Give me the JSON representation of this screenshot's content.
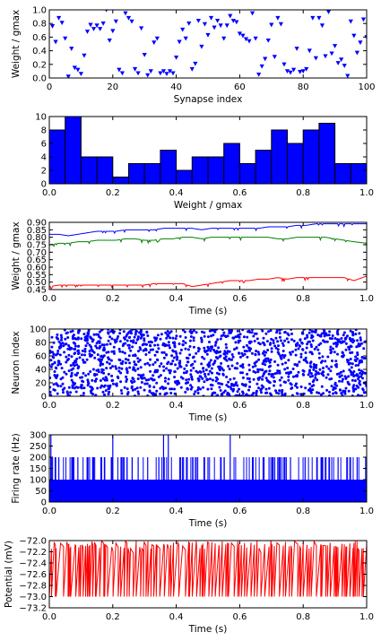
{
  "chart_data": [
    {
      "type": "scatter",
      "xlabel": "Synapse index",
      "ylabel": "Weight / gmax",
      "xlim": [
        0,
        100
      ],
      "ylim": [
        0,
        1.0
      ],
      "xticks": [
        0,
        20,
        40,
        60,
        80,
        100
      ],
      "yticks": [
        0.0,
        0.2,
        0.4,
        0.6,
        0.8,
        1.0
      ],
      "ytick_labels": [
        "0.0",
        "0.2",
        "0.4",
        "0.6",
        "0.8",
        "1.0"
      ],
      "marker": "triangle-down",
      "color": "#0000ff",
      "x": [
        1,
        2,
        3,
        4,
        5,
        6,
        7,
        8,
        9,
        10,
        11,
        12,
        13,
        14,
        15,
        16,
        17,
        18,
        19,
        20,
        21,
        22,
        23,
        24,
        25,
        26,
        27,
        28,
        29,
        30,
        31,
        32,
        33,
        34,
        35,
        36,
        37,
        38,
        39,
        40,
        41,
        42,
        43,
        44,
        45,
        46,
        47,
        48,
        49,
        50,
        51,
        52,
        53,
        54,
        55,
        56,
        57,
        58,
        59,
        60,
        61,
        62,
        63,
        64,
        65,
        66,
        67,
        68,
        69,
        70,
        71,
        72,
        73,
        74,
        75,
        76,
        77,
        78,
        79,
        80,
        81,
        82,
        83,
        84,
        85,
        86,
        87,
        88,
        89,
        90,
        91,
        92,
        93,
        94,
        95,
        96,
        97,
        98,
        99,
        100
      ],
      "y": [
        0.76,
        0.53,
        0.88,
        0.81,
        0.58,
        0.02,
        0.43,
        0.15,
        0.12,
        0.06,
        0.33,
        0.68,
        0.78,
        0.72,
        0.77,
        0.72,
        0.8,
        1.0,
        0.55,
        0.69,
        0.83,
        0.12,
        0.07,
        0.95,
        0.88,
        0.83,
        0.13,
        0.07,
        0.73,
        0.34,
        0.04,
        0.1,
        0.52,
        0.58,
        0.07,
        0.1,
        0.06,
        0.1,
        0.07,
        0.3,
        0.53,
        0.71,
        0.58,
        0.8,
        0.13,
        0.21,
        0.84,
        0.46,
        0.79,
        0.63,
        0.88,
        0.74,
        0.84,
        0.77,
        0.58,
        0.77,
        0.91,
        0.84,
        0.82,
        0.65,
        0.62,
        0.57,
        0.54,
        0.95,
        0.58,
        0.05,
        0.17,
        0.28,
        0.55,
        0.78,
        0.31,
        0.88,
        0.79,
        0.2,
        0.1,
        0.08,
        0.12,
        0.43,
        0.09,
        0.1,
        0.13,
        0.4,
        0.88,
        0.29,
        0.88,
        0.77,
        0.32,
        0.97,
        0.36,
        0.47,
        0.22,
        0.27,
        0.18,
        0.03,
        0.83,
        0.62,
        0.37,
        0.52,
        0.86,
        0.6
      ]
    },
    {
      "type": "bar",
      "xlabel": "Weight / gmax",
      "xlim": [
        0,
        1.0
      ],
      "ylim": [
        0,
        10
      ],
      "xticks": [
        0.0,
        0.2,
        0.4,
        0.6,
        0.8,
        1.0
      ],
      "xtick_labels": [
        "0.0",
        "0.2",
        "0.4",
        "0.6",
        "0.8",
        "1.0"
      ],
      "yticks": [
        0,
        2,
        4,
        6,
        8,
        10
      ],
      "color": "#0000ff",
      "bins": [
        0.025,
        0.075,
        0.125,
        0.175,
        0.225,
        0.275,
        0.325,
        0.375,
        0.425,
        0.475,
        0.525,
        0.575,
        0.625,
        0.675,
        0.725,
        0.775,
        0.825,
        0.875,
        0.925,
        0.975
      ],
      "bin_width": 0.05,
      "values": [
        8,
        10,
        4,
        4,
        1,
        3,
        3,
        5,
        2,
        4,
        4,
        6,
        3,
        5,
        8,
        6,
        8,
        9,
        3,
        3
      ]
    },
    {
      "type": "line",
      "xlabel": "Time (s)",
      "ylabel": "Weight / gmax",
      "xlim": [
        0,
        1.0
      ],
      "ylim": [
        0.45,
        0.9
      ],
      "xticks": [
        0.0,
        0.2,
        0.4,
        0.6,
        0.8,
        1.0
      ],
      "xtick_labels": [
        "0.0",
        "0.2",
        "0.4",
        "0.6",
        "0.8",
        "1.0"
      ],
      "yticks": [
        0.45,
        0.5,
        0.55,
        0.6,
        0.65,
        0.7,
        0.75,
        0.8,
        0.85,
        0.9
      ],
      "ytick_labels": [
        "0.45",
        "0.50",
        "0.55",
        "0.60",
        "0.65",
        "0.70",
        "0.75",
        "0.80",
        "0.85",
        "0.90"
      ],
      "series": [
        {
          "color": "#0000ff",
          "x": [
            0,
            0.03,
            0.06,
            0.09,
            0.12,
            0.15,
            0.18,
            0.21,
            0.24,
            0.27,
            0.3,
            0.33,
            0.36,
            0.39,
            0.42,
            0.45,
            0.48,
            0.51,
            0.54,
            0.57,
            0.6,
            0.63,
            0.66,
            0.69,
            0.72,
            0.75,
            0.78,
            0.81,
            0.84,
            0.87,
            0.9,
            0.93,
            0.96,
            1.0
          ],
          "y": [
            0.82,
            0.82,
            0.81,
            0.82,
            0.83,
            0.84,
            0.84,
            0.84,
            0.85,
            0.85,
            0.85,
            0.85,
            0.86,
            0.86,
            0.86,
            0.86,
            0.85,
            0.86,
            0.86,
            0.86,
            0.86,
            0.86,
            0.86,
            0.87,
            0.87,
            0.87,
            0.88,
            0.88,
            0.89,
            0.89,
            0.89,
            0.89,
            0.89,
            0.89
          ]
        },
        {
          "color": "#008000",
          "x": [
            0,
            0.03,
            0.06,
            0.09,
            0.12,
            0.15,
            0.18,
            0.21,
            0.24,
            0.27,
            0.3,
            0.33,
            0.36,
            0.39,
            0.42,
            0.45,
            0.48,
            0.51,
            0.54,
            0.57,
            0.6,
            0.63,
            0.66,
            0.69,
            0.72,
            0.75,
            0.78,
            0.81,
            0.84,
            0.87,
            0.9,
            0.93,
            0.96,
            1.0
          ],
          "y": [
            0.75,
            0.76,
            0.76,
            0.77,
            0.77,
            0.78,
            0.78,
            0.78,
            0.79,
            0.79,
            0.78,
            0.78,
            0.79,
            0.79,
            0.8,
            0.8,
            0.79,
            0.8,
            0.8,
            0.8,
            0.8,
            0.8,
            0.8,
            0.8,
            0.79,
            0.79,
            0.8,
            0.8,
            0.8,
            0.8,
            0.79,
            0.78,
            0.77,
            0.76
          ]
        },
        {
          "color": "#ff0000",
          "x": [
            0,
            0.03,
            0.06,
            0.09,
            0.12,
            0.15,
            0.18,
            0.21,
            0.24,
            0.27,
            0.3,
            0.33,
            0.36,
            0.39,
            0.42,
            0.45,
            0.48,
            0.51,
            0.54,
            0.57,
            0.6,
            0.63,
            0.66,
            0.69,
            0.72,
            0.75,
            0.78,
            0.81,
            0.84,
            0.87,
            0.9,
            0.93,
            0.96,
            1.0
          ],
          "y": [
            0.47,
            0.48,
            0.48,
            0.48,
            0.48,
            0.48,
            0.48,
            0.48,
            0.48,
            0.48,
            0.48,
            0.49,
            0.49,
            0.49,
            0.49,
            0.47,
            0.48,
            0.49,
            0.5,
            0.51,
            0.51,
            0.51,
            0.52,
            0.52,
            0.53,
            0.52,
            0.53,
            0.53,
            0.53,
            0.53,
            0.53,
            0.53,
            0.51,
            0.54
          ]
        }
      ]
    },
    {
      "type": "scatter",
      "xlabel": "Time (s)",
      "ylabel": "Neuron index",
      "xlim": [
        0,
        1.0
      ],
      "ylim": [
        0,
        100
      ],
      "xticks": [
        0.0,
        0.2,
        0.4,
        0.6,
        0.8,
        1.0
      ],
      "xtick_labels": [
        "0.0",
        "0.2",
        "0.4",
        "0.6",
        "0.8",
        "1.0"
      ],
      "yticks": [
        0,
        20,
        40,
        60,
        80,
        100
      ],
      "color": "#0000ff",
      "n_spikes": 1500,
      "distribution": "uniform"
    },
    {
      "type": "bar",
      "xlabel": "Time (s)",
      "ylabel": "Firing rate (Hz)",
      "xlim": [
        0,
        1.0
      ],
      "ylim": [
        0,
        300
      ],
      "xticks": [
        0.0,
        0.2,
        0.4,
        0.6,
        0.8,
        1.0
      ],
      "xtick_labels": [
        "0.0",
        "0.2",
        "0.4",
        "0.6",
        "0.8",
        "1.0"
      ],
      "yticks": [
        0,
        50,
        100,
        150,
        200,
        250,
        300
      ],
      "color": "#0000ff",
      "baseline": 100,
      "peaks": [
        {
          "t": 0.005,
          "v": 300
        },
        {
          "t": 0.02,
          "v": 200
        },
        {
          "t": 0.03,
          "v": 200
        },
        {
          "t": 0.09,
          "v": 200
        },
        {
          "t": 0.12,
          "v": 200
        },
        {
          "t": 0.14,
          "v": 200
        },
        {
          "t": 0.165,
          "v": 200
        },
        {
          "t": 0.2,
          "v": 300
        },
        {
          "t": 0.245,
          "v": 200
        },
        {
          "t": 0.28,
          "v": 200
        },
        {
          "t": 0.31,
          "v": 200
        },
        {
          "t": 0.36,
          "v": 300
        },
        {
          "t": 0.375,
          "v": 300
        },
        {
          "t": 0.42,
          "v": 200
        },
        {
          "t": 0.5,
          "v": 200
        },
        {
          "t": 0.57,
          "v": 300
        },
        {
          "t": 0.64,
          "v": 200
        },
        {
          "t": 0.72,
          "v": 200
        },
        {
          "t": 0.76,
          "v": 200
        },
        {
          "t": 0.86,
          "v": 200
        },
        {
          "t": 0.91,
          "v": 200
        },
        {
          "t": 0.97,
          "v": 200
        }
      ]
    },
    {
      "type": "line",
      "xlabel": "Time (s)",
      "ylabel": "Potential (mV)",
      "xlim": [
        0,
        1.0
      ],
      "ylim": [
        -73.2,
        -72.0
      ],
      "xticks": [
        0.0,
        0.2,
        0.4,
        0.6,
        0.8,
        1.0
      ],
      "xtick_labels": [
        "0.0",
        "0.2",
        "0.4",
        "0.6",
        "0.8",
        "1.0"
      ],
      "yticks": [
        -72.0,
        -72.2,
        -72.4,
        -72.6,
        -72.8,
        -73.0,
        -73.2
      ],
      "ytick_labels": [
        "−72.0",
        "−72.2",
        "−72.4",
        "−72.6",
        "−72.8",
        "−73.0",
        "−73.2"
      ],
      "color": "#ff0000",
      "v_rest": -72.0,
      "v_reset": -73.0
    }
  ]
}
